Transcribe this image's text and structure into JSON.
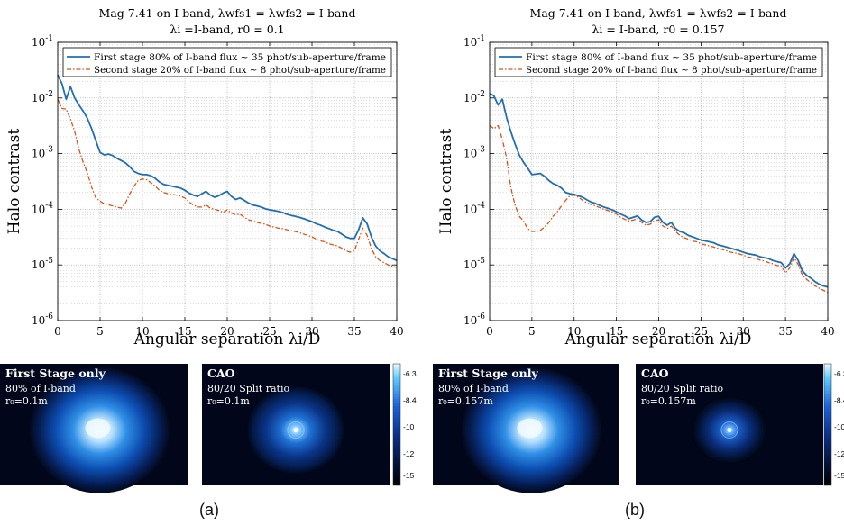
{
  "colors": {
    "first_stage": "#1f6fb2",
    "second_stage": "#d9541b",
    "axis": "#000000",
    "grid": "#b8b8b8"
  },
  "chart_data": [
    {
      "type": "line",
      "id": "a",
      "title_line1": "Mag 7.41 on I-band, λwfs1 = λwfs2 = I-band",
      "title_line2": "λi =I-band, r0 = 0.1",
      "xlabel": "Angular separation λi/D",
      "ylabel": "Halo contrast",
      "xlim": [
        0,
        40
      ],
      "ylim": [
        1e-06,
        0.1
      ],
      "yscale": "log",
      "grid": true,
      "legend_position": "top",
      "x_ticks": [
        "0",
        "5",
        "10",
        "15",
        "20",
        "25",
        "30",
        "35",
        "40"
      ],
      "y_ticks": [
        "10^-6",
        "10^-5",
        "10^-4",
        "10^-3",
        "10^-2",
        "10^-1"
      ],
      "series": [
        {
          "name": "First stage 80% of I-band flux ∼ 35 phot/sub-aperture/frame",
          "style": "solid",
          "x": [
            0,
            0.5,
            1,
            1.5,
            2,
            2.5,
            3,
            3.5,
            4,
            4.5,
            5,
            5.5,
            6,
            6.5,
            7,
            7.5,
            8,
            8.5,
            9,
            9.5,
            10,
            10.5,
            11,
            11.5,
            12,
            12.5,
            13,
            13.5,
            14,
            14.5,
            15,
            15.5,
            16,
            16.5,
            17,
            17.5,
            18,
            18.5,
            19,
            19.5,
            20,
            20.5,
            21,
            21.5,
            22,
            22.5,
            23,
            23.5,
            24,
            24.5,
            25,
            25.5,
            26,
            26.5,
            27,
            27.5,
            28,
            28.5,
            29,
            29.5,
            30,
            30.5,
            31,
            31.5,
            32,
            32.5,
            33,
            33.5,
            34,
            34.5,
            35,
            35.5,
            36,
            36.5,
            37,
            37.5,
            38,
            38.5,
            39,
            39.5,
            40
          ],
          "y": [
            0.026,
            0.018,
            0.0095,
            0.016,
            0.01,
            0.0075,
            0.0058,
            0.0043,
            0.0028,
            0.0017,
            0.00105,
            0.00095,
            0.00098,
            0.00092,
            0.00082,
            0.00075,
            0.00068,
            0.00058,
            0.00048,
            0.00044,
            0.00042,
            0.00042,
            0.0004,
            0.00036,
            0.00031,
            0.00028,
            0.00027,
            0.00026,
            0.00025,
            0.00024,
            0.00022,
            0.000195,
            0.00018,
            0.00017,
            0.00019,
            0.00021,
            0.00018,
            0.000165,
            0.000175,
            0.000195,
            0.00021,
            0.00017,
            0.00015,
            0.00016,
            0.000145,
            0.00013,
            0.00012,
            0.000115,
            0.00011,
            0.000102,
            9.8e-05,
            9.5e-05,
            9.2e-05,
            8.8e-05,
            8.2e-05,
            7.8e-05,
            7.5e-05,
            7.2e-05,
            6.8e-05,
            6.4e-05,
            6e-05,
            5.5e-05,
            5.2e-05,
            4.8e-05,
            4.5e-05,
            4.2e-05,
            4e-05,
            3.6e-05,
            3.2e-05,
            3e-05,
            3e-05,
            4.3e-05,
            7e-05,
            5.5e-05,
            3.2e-05,
            2.2e-05,
            1.8e-05,
            1.6e-05,
            1.4e-05,
            1.3e-05,
            1.2e-05
          ]
        },
        {
          "name": "Second stage 20% of I-band flux ∼ 8 phot/sub-aperture/frame",
          "style": "dashdot",
          "x": [
            0,
            0.5,
            1,
            1.5,
            2,
            2.5,
            3,
            3.5,
            4,
            4.5,
            5,
            5.5,
            6,
            6.5,
            7,
            7.5,
            8,
            8.5,
            9,
            9.5,
            10,
            10.5,
            11,
            11.5,
            12,
            12.5,
            13,
            13.5,
            14,
            14.5,
            15,
            15.5,
            16,
            16.5,
            17,
            17.5,
            18,
            18.5,
            19,
            19.5,
            20,
            20.5,
            21,
            21.5,
            22,
            22.5,
            23,
            23.5,
            24,
            24.5,
            25,
            25.5,
            26,
            26.5,
            27,
            27.5,
            28,
            28.5,
            29,
            29.5,
            30,
            30.5,
            31,
            31.5,
            32,
            32.5,
            33,
            33.5,
            34,
            34.5,
            35,
            35.5,
            36,
            36.5,
            37,
            37.5,
            38,
            38.5,
            39,
            39.5,
            40
          ],
          "y": [
            0.0095,
            0.0065,
            0.0063,
            0.0042,
            0.0025,
            0.0012,
            0.0007,
            0.00045,
            0.00025,
            0.00016,
            0.00014,
            0.000125,
            0.00012,
            0.000115,
            0.00011,
            0.000105,
            0.00013,
            0.00019,
            0.00026,
            0.00033,
            0.00035,
            0.00034,
            0.0003,
            0.00026,
            0.00022,
            0.0002,
            0.00019,
            0.000185,
            0.00018,
            0.000172,
            0.00016,
            0.000135,
            0.00012,
            0.00011,
            0.00011,
            0.00012,
            0.000105,
            0.0001,
            9.5e-05,
            8.8e-05,
            9.8e-05,
            8.5e-05,
            8e-05,
            8.2e-05,
            7.2e-05,
            6.5e-05,
            6.2e-05,
            5.8e-05,
            5.6e-05,
            5.4e-05,
            5e-05,
            4.8e-05,
            4.6e-05,
            4.5e-05,
            4.3e-05,
            4.1e-05,
            4e-05,
            3.8e-05,
            3.6e-05,
            3.4e-05,
            3.2e-05,
            2.9e-05,
            2.7e-05,
            2.6e-05,
            2.4e-05,
            2.3e-05,
            2.2e-05,
            2e-05,
            1.8e-05,
            1.7e-05,
            1.8e-05,
            2.9e-05,
            4.6e-05,
            3.4e-05,
            2e-05,
            1.4e-05,
            1.2e-05,
            1.1e-05,
            1e-05,
            9.5e-06,
            9e-06
          ]
        }
      ]
    },
    {
      "type": "line",
      "id": "b",
      "title_line1": "Mag 7.41 on I-band, λwfs1 = λwfs2 = I-band",
      "title_line2": "λi = I-band, r0 = 0.157",
      "xlabel": "Angular separation λi/D",
      "ylabel": "Halo contrast",
      "xlim": [
        0,
        40
      ],
      "ylim": [
        1e-06,
        0.1
      ],
      "yscale": "log",
      "grid": true,
      "legend_position": "top",
      "x_ticks": [
        "0",
        "5",
        "10",
        "15",
        "20",
        "25",
        "30",
        "35",
        "40"
      ],
      "y_ticks": [
        "10^-6",
        "10^-5",
        "10^-4",
        "10^-3",
        "10^-2",
        "10^-1"
      ],
      "series": [
        {
          "name": "First stage 80% of I-band flux ∼ 35 phot/sub-aperture/frame",
          "style": "solid",
          "x": [
            0,
            0.5,
            1,
            1.5,
            2,
            2.5,
            3,
            3.5,
            4,
            4.5,
            5,
            5.5,
            6,
            6.5,
            7,
            7.5,
            8,
            8.5,
            9,
            9.5,
            10,
            10.5,
            11,
            11.5,
            12,
            12.5,
            13,
            13.5,
            14,
            14.5,
            15,
            15.5,
            16,
            16.5,
            17,
            17.5,
            18,
            18.5,
            19,
            19.5,
            20,
            20.5,
            21,
            21.5,
            22,
            22.5,
            23,
            23.5,
            24,
            24.5,
            25,
            25.5,
            26,
            26.5,
            27,
            27.5,
            28,
            28.5,
            29,
            29.5,
            30,
            30.5,
            31,
            31.5,
            32,
            32.5,
            33,
            33.5,
            34,
            34.5,
            35,
            35.5,
            36,
            36.5,
            37,
            37.5,
            38,
            38.5,
            39,
            39.5,
            40
          ],
          "y": [
            0.012,
            0.011,
            0.0075,
            0.0095,
            0.0045,
            0.0025,
            0.0015,
            0.00095,
            0.0007,
            0.00055,
            0.00042,
            0.00043,
            0.00044,
            0.00039,
            0.00033,
            0.00029,
            0.00027,
            0.00024,
            0.0002,
            0.00019,
            0.000185,
            0.000175,
            0.000165,
            0.000148,
            0.000135,
            0.000128,
            0.000118,
            0.00011,
            0.000104,
            9.8e-05,
            9e-05,
            8.2e-05,
            7.6e-05,
            6.8e-05,
            7.2e-05,
            7.6e-05,
            6.4e-05,
            5.8e-05,
            6e-05,
            7.2e-05,
            7.5e-05,
            5.8e-05,
            5.2e-05,
            5.8e-05,
            4.5e-05,
            4e-05,
            3.8e-05,
            3.4e-05,
            3.2e-05,
            3e-05,
            2.8e-05,
            2.7e-05,
            2.6e-05,
            2.5e-05,
            2.3e-05,
            2.2e-05,
            2.1e-05,
            2e-05,
            1.9e-05,
            1.8e-05,
            1.7e-05,
            1.6e-05,
            1.55e-05,
            1.5e-05,
            1.4e-05,
            1.35e-05,
            1.3e-05,
            1.2e-05,
            1.15e-05,
            1.1e-05,
            8.8e-06,
            1.05e-05,
            1.6e-05,
            1.2e-05,
            7.8e-06,
            6.5e-06,
            5.8e-06,
            5e-06,
            4.5e-06,
            4.2e-06,
            4e-06
          ]
        },
        {
          "name": "Second stage 20% of I-band flux ∼ 8 phot/sub-aperture/frame",
          "style": "dashdot",
          "x": [
            0,
            0.5,
            1,
            1.5,
            2,
            2.5,
            3,
            3.5,
            4,
            4.5,
            5,
            5.5,
            6,
            6.5,
            7,
            7.5,
            8,
            8.5,
            9,
            9.5,
            10,
            10.5,
            11,
            11.5,
            12,
            12.5,
            13,
            13.5,
            14,
            14.5,
            15,
            15.5,
            16,
            16.5,
            17,
            17.5,
            18,
            18.5,
            19,
            19.5,
            20,
            20.5,
            21,
            21.5,
            22,
            22.5,
            23,
            23.5,
            24,
            24.5,
            25,
            25.5,
            26,
            26.5,
            27,
            27.5,
            28,
            28.5,
            29,
            29.5,
            30,
            30.5,
            31,
            31.5,
            32,
            32.5,
            33,
            33.5,
            34,
            34.5,
            35,
            35.5,
            36,
            36.5,
            37,
            37.5,
            38,
            38.5,
            39,
            39.5,
            40
          ],
          "y": [
            0.0032,
            0.0028,
            0.0032,
            0.0018,
            0.00085,
            0.00025,
            0.00012,
            7.5e-05,
            6.2e-05,
            4.5e-05,
            4e-05,
            4e-05,
            4.2e-05,
            4.8e-05,
            5.8e-05,
            7.5e-05,
            9e-05,
            0.000115,
            0.000145,
            0.000175,
            0.00018,
            0.000165,
            0.000145,
            0.00013,
            0.000122,
            0.000115,
            0.000108,
            0.0001,
            9.5e-05,
            9e-05,
            8.2e-05,
            7.2e-05,
            6.6e-05,
            6.2e-05,
            6.4e-05,
            6.8e-05,
            5.8e-05,
            5.2e-05,
            5.4e-05,
            6.2e-05,
            6.5e-05,
            5e-05,
            4.5e-05,
            5e-05,
            4e-05,
            3.4e-05,
            3.1e-05,
            2.9e-05,
            2.7e-05,
            2.6e-05,
            2.4e-05,
            2.3e-05,
            2.2e-05,
            2.1e-05,
            2e-05,
            1.9e-05,
            1.8e-05,
            1.7e-05,
            1.65e-05,
            1.58e-05,
            1.5e-05,
            1.4e-05,
            1.35e-05,
            1.3e-05,
            1.22e-05,
            1.18e-05,
            1.1e-05,
            1.05e-05,
            9.8e-06,
            9.5e-06,
            7.2e-06,
            8.8e-06,
            1.35e-05,
            1.02e-05,
            6.6e-06,
            5.5e-06,
            4.8e-06,
            4.2e-06,
            3.8e-06,
            3.5e-06,
            3.2e-06
          ]
        }
      ]
    }
  ],
  "images": [
    {
      "panel": "a",
      "position": "left",
      "title": "First Stage only",
      "line1": "80% of I-band",
      "line2": "r₀=0.1m",
      "blob": "large"
    },
    {
      "panel": "a",
      "position": "right",
      "title": "CAO",
      "line1": "80/20 Split ratio",
      "line2": "r₀=0.1m",
      "blob": "medium"
    },
    {
      "panel": "b",
      "position": "left",
      "title": "First Stage only",
      "line1": "80% of I-band",
      "line2": "r₀=0.157m",
      "blob": "large"
    },
    {
      "panel": "b",
      "position": "right",
      "title": "CAO",
      "line1": "80/20 Split ratio",
      "line2": "r₀=0.157m",
      "blob": "small"
    }
  ],
  "colorbar": {
    "ticks": [
      "-6.3",
      "-8.4",
      "-10",
      "-12",
      "-15"
    ]
  },
  "captions": [
    "(a)",
    "(b)"
  ]
}
